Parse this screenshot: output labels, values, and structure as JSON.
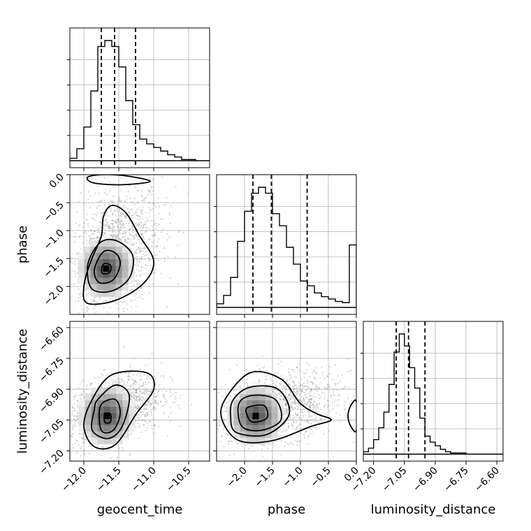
{
  "chart_data": {
    "type": "corner",
    "parameters": [
      "geocent_time",
      "phase",
      "luminosity_distance"
    ],
    "grid": true,
    "ranges": {
      "geocent_time": [
        -12.2,
        -10.2
      ],
      "phase": [
        -2.5,
        0.0
      ],
      "luminosity_distance": [
        -7.25,
        -6.57
      ]
    },
    "ticks": {
      "geocent_time": {
        "values": [
          -12.0,
          -11.5,
          -11.0,
          -10.5
        ],
        "labels": [
          "−12.0",
          "−11.5",
          "−11.0",
          "−10.5"
        ]
      },
      "phase_x": {
        "values": [
          -2.0,
          -1.5,
          -1.0,
          -0.5,
          0.0
        ],
        "labels": [
          "−2.0",
          "−1.5",
          "−1.0",
          "−0.5",
          "0.0"
        ]
      },
      "phase_y": {
        "values": [
          0.0,
          -0.5,
          -1.0,
          -1.5,
          -2.0
        ],
        "labels": [
          "0.0",
          "−0.5",
          "−1.0",
          "−1.5",
          "−2.0"
        ]
      },
      "luminosity_distance": {
        "values": [
          -7.2,
          -7.05,
          -6.9,
          -6.75,
          -6.6
        ],
        "labels": [
          "−7.20",
          "−7.05",
          "−6.90",
          "−6.75",
          "−6.60"
        ]
      }
    },
    "marginals": {
      "geocent_time": {
        "quantiles": [
          -11.75,
          -11.56,
          -11.26
        ],
        "bin_edges": [
          -12.2,
          -12.1,
          -12.0,
          -11.9,
          -11.8,
          -11.7,
          -11.6,
          -11.5,
          -11.4,
          -11.3,
          -11.2,
          -11.1,
          -11.0,
          -10.9,
          -10.8,
          -10.7,
          -10.6,
          -10.5,
          -10.4
        ],
        "counts": [
          2,
          10,
          28,
          58,
          95,
          100,
          95,
          78,
          50,
          30,
          18,
          14,
          11,
          8,
          5,
          3,
          1,
          1
        ]
      },
      "phase": {
        "quantiles": [
          -1.85,
          -1.52,
          -0.88
        ],
        "bin_edges": [
          -2.5,
          -2.375,
          -2.25,
          -2.125,
          -2.0,
          -1.875,
          -1.75,
          -1.625,
          -1.5,
          -1.375,
          -1.25,
          -1.125,
          -1.0,
          -0.875,
          -0.75,
          -0.625,
          -0.5,
          -0.375,
          -0.25,
          -0.125,
          0.0
        ],
        "counts": [
          3,
          10,
          25,
          55,
          80,
          95,
          100,
          95,
          78,
          68,
          50,
          36,
          22,
          18,
          12,
          9,
          7,
          5,
          4,
          52
        ]
      },
      "luminosity_distance": {
        "quantiles": [
          -7.09,
          -7.03,
          -6.95
        ],
        "bin_edges": [
          -7.25,
          -7.225,
          -7.2,
          -7.175,
          -7.15,
          -7.125,
          -7.1,
          -7.075,
          -7.05,
          -7.025,
          -7.0,
          -6.975,
          -6.95,
          -6.925,
          -6.9,
          -6.875,
          -6.85,
          -6.825,
          -6.8,
          -6.775,
          -6.75
        ],
        "counts": [
          2,
          5,
          12,
          22,
          35,
          58,
          85,
          100,
          90,
          72,
          55,
          30,
          15,
          10,
          7,
          4,
          2,
          1,
          1,
          1
        ]
      }
    },
    "joint": {
      "phase_vs_geocent_time": {
        "peak": [
          -11.68,
          -1.68
        ],
        "contours": [
          [
            [
              -11.72,
              -1.6
            ],
            [
              -11.62,
              -1.62
            ],
            [
              -11.63,
              -1.75
            ],
            [
              -11.74,
              -1.76
            ]
          ],
          [
            [
              -11.72,
              -1.38
            ],
            [
              -11.55,
              -1.4
            ],
            [
              -11.48,
              -1.6
            ],
            [
              -11.58,
              -1.88
            ],
            [
              -11.78,
              -1.93
            ],
            [
              -11.85,
              -1.7
            ]
          ],
          [
            [
              -11.72,
              -1.18
            ],
            [
              -11.5,
              -1.2
            ],
            [
              -11.3,
              -1.45
            ],
            [
              -11.35,
              -1.85
            ],
            [
              -11.6,
              -2.08
            ],
            [
              -11.88,
              -2.05
            ],
            [
              -11.95,
              -1.7
            ],
            [
              -11.88,
              -1.4
            ]
          ],
          [
            [
              -11.6,
              -0.55
            ],
            [
              -11.4,
              -0.68
            ],
            [
              -11.2,
              -1.1
            ],
            [
              -11.0,
              -1.55
            ],
            [
              -11.15,
              -1.95
            ],
            [
              -11.55,
              -2.25
            ],
            [
              -11.95,
              -2.3
            ],
            [
              -12.0,
              -2.0
            ],
            [
              -11.9,
              -1.55
            ],
            [
              -11.75,
              -1.1
            ],
            [
              -11.72,
              -0.75
            ]
          ],
          [
            [
              -11.95,
              -0.05
            ],
            [
              -11.75,
              0.0
            ],
            [
              -11.4,
              -0.02
            ],
            [
              -11.05,
              -0.12
            ],
            [
              -11.45,
              -0.18
            ],
            [
              -11.85,
              -0.15
            ]
          ]
        ],
        "scatter_center": [
          -11.55,
          -1.4
        ],
        "scatter_spread": [
          0.33,
          0.55
        ]
      },
      "luminosity_distance_vs_geocent_time": {
        "peak": [
          -11.67,
          -7.03
        ],
        "contours": [
          [
            [
              -11.7,
              -7.02
            ],
            [
              -11.62,
              -7.02
            ],
            [
              -11.62,
              -7.06
            ],
            [
              -11.7,
              -7.06
            ]
          ],
          [
            [
              -11.76,
              -6.98
            ],
            [
              -11.55,
              -6.95
            ],
            [
              -11.48,
              -7.02
            ],
            [
              -11.58,
              -7.1
            ],
            [
              -11.75,
              -7.1
            ]
          ],
          [
            [
              -11.8,
              -6.95
            ],
            [
              -11.55,
              -6.88
            ],
            [
              -11.35,
              -6.93
            ],
            [
              -11.45,
              -7.08
            ],
            [
              -11.65,
              -7.14
            ],
            [
              -11.88,
              -7.1
            ],
            [
              -11.85,
              -7.0
            ]
          ],
          [
            [
              -11.88,
              -6.95
            ],
            [
              -11.6,
              -6.83
            ],
            [
              -11.1,
              -6.82
            ],
            [
              -11.0,
              -6.9
            ],
            [
              -11.25,
              -7.02
            ],
            [
              -11.55,
              -7.17
            ],
            [
              -11.85,
              -7.18
            ],
            [
              -12.0,
              -7.08
            ]
          ]
        ],
        "scatter_center": [
          -11.55,
          -6.99
        ],
        "scatter_spread": [
          0.33,
          0.08
        ]
      },
      "luminosity_distance_vs_phase": {
        "peak": [
          -1.8,
          -7.03
        ],
        "contours": [
          [
            [
              -1.95,
              -6.99
            ],
            [
              -1.65,
              -6.98
            ],
            [
              -1.6,
              -7.04
            ],
            [
              -1.85,
              -7.06
            ],
            [
              -1.95,
              -7.03
            ]
          ],
          [
            [
              -2.1,
              -6.97
            ],
            [
              -1.85,
              -6.93
            ],
            [
              -1.45,
              -6.95
            ],
            [
              -1.35,
              -7.05
            ],
            [
              -1.7,
              -7.1
            ],
            [
              -2.05,
              -7.08
            ]
          ],
          [
            [
              -2.2,
              -6.95
            ],
            [
              -1.9,
              -6.89
            ],
            [
              -1.4,
              -6.9
            ],
            [
              -1.2,
              -7.02
            ],
            [
              -1.6,
              -7.12
            ],
            [
              -2.15,
              -7.11
            ],
            [
              -2.25,
              -7.03
            ]
          ],
          [
            [
              -2.35,
              -6.95
            ],
            [
              -1.9,
              -6.82
            ],
            [
              -1.35,
              -6.85
            ],
            [
              -1.0,
              -6.97
            ],
            [
              -0.7,
              -7.02
            ],
            [
              -0.45,
              -7.05
            ],
            [
              -0.8,
              -7.08
            ],
            [
              -1.5,
              -7.15
            ],
            [
              -2.1,
              -7.15
            ],
            [
              -2.4,
              -7.05
            ]
          ],
          [
            [
              0.0,
              -6.96
            ],
            [
              -0.1,
              -6.98
            ],
            [
              -0.15,
              -7.03
            ],
            [
              -0.1,
              -7.08
            ],
            [
              0.0,
              -7.1
            ]
          ]
        ],
        "scatter_center": [
          -1.45,
          -6.99
        ],
        "scatter_spread": [
          0.55,
          0.08
        ]
      }
    },
    "xlabels": [
      "geocent_time",
      "phase",
      "luminosity_distance"
    ],
    "ylabels": [
      "phase",
      "luminosity_distance"
    ]
  }
}
